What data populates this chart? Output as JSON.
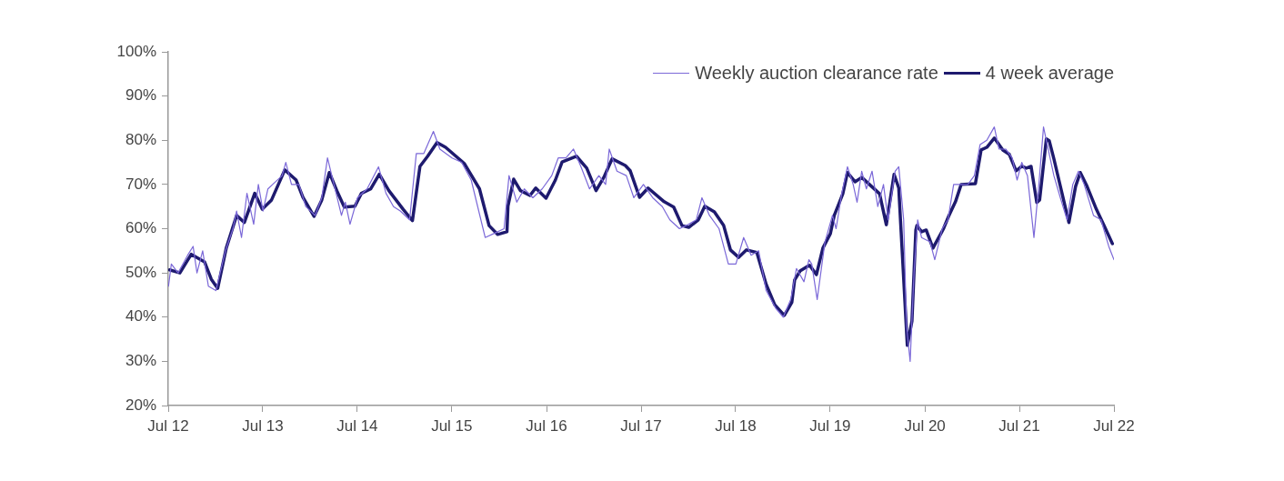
{
  "chart_data": {
    "type": "line",
    "xlim": [
      "2012-07-01",
      "2022-07-01"
    ],
    "xticks": [
      {
        "value": "2012-07-01",
        "label": "Jul 12"
      },
      {
        "value": "2013-07-01",
        "label": "Jul 13"
      },
      {
        "value": "2014-07-01",
        "label": "Jul 14"
      },
      {
        "value": "2015-07-01",
        "label": "Jul 15"
      },
      {
        "value": "2016-07-01",
        "label": "Jul 16"
      },
      {
        "value": "2017-07-01",
        "label": "Jul 17"
      },
      {
        "value": "2018-07-01",
        "label": "Jul 18"
      },
      {
        "value": "2019-07-01",
        "label": "Jul 19"
      },
      {
        "value": "2020-07-01",
        "label": "Jul 20"
      },
      {
        "value": "2021-07-01",
        "label": "Jul 21"
      },
      {
        "value": "2022-07-01",
        "label": "Jul 22"
      }
    ],
    "ylim": [
      20,
      100
    ],
    "yticks": [
      {
        "value": 20,
        "label": "20%"
      },
      {
        "value": 30,
        "label": "30%"
      },
      {
        "value": 40,
        "label": "40%"
      },
      {
        "value": 50,
        "label": "50%"
      },
      {
        "value": 60,
        "label": "60%"
      },
      {
        "value": 70,
        "label": "70%"
      },
      {
        "value": 80,
        "label": "80%"
      },
      {
        "value": 90,
        "label": "90%"
      },
      {
        "value": 100,
        "label": "100%"
      }
    ],
    "grid": false,
    "legend": "top right",
    "marker": "none",
    "line_style": "solid",
    "series": [
      {
        "name": "Weekly auction clearance rate",
        "color": "#7b68d8",
        "x": [
          "2012-07-02",
          "2012-07-13",
          "2012-08-08",
          "2012-09-14",
          "2012-10-05",
          "2012-10-20",
          "2012-11-11",
          "2012-12-03",
          "2013-01-01",
          "2013-02-07",
          "2013-03-08",
          "2013-03-22",
          "2013-04-10",
          "2013-05-01",
          "2013-05-27",
          "2013-06-14",
          "2013-07-02",
          "2013-07-21",
          "2013-08-08",
          "2013-09-14",
          "2013-09-28",
          "2013-10-20",
          "2013-11-18",
          "2013-12-14",
          "2014-01-19",
          "2014-02-14",
          "2014-03-08",
          "2014-04-02",
          "2014-05-01",
          "2014-05-16",
          "2014-06-03",
          "2014-07-02",
          "2014-08-08",
          "2014-09-21",
          "2014-10-20",
          "2014-11-18",
          "2014-12-14",
          "2015-01-19",
          "2015-02-14",
          "2015-03-15",
          "2015-04-21",
          "2015-05-16",
          "2015-07-02",
          "2015-08-08",
          "2015-09-14",
          "2015-11-07",
          "2015-12-14",
          "2016-01-19",
          "2016-02-07",
          "2016-03-08",
          "2016-04-06",
          "2016-05-09",
          "2016-06-14",
          "2016-07-21",
          "2016-08-15",
          "2016-09-14",
          "2016-10-13",
          "2016-11-11",
          "2016-12-14",
          "2017-01-19",
          "2017-02-14",
          "2017-02-28",
          "2017-03-30",
          "2017-05-05",
          "2017-06-03",
          "2017-07-10",
          "2017-08-15",
          "2017-09-21",
          "2017-10-20",
          "2017-11-26",
          "2018-01-01",
          "2018-01-30",
          "2018-02-21",
          "2018-03-22",
          "2018-04-28",
          "2018-06-03",
          "2018-07-02",
          "2018-08-01",
          "2018-08-30",
          "2018-09-28",
          "2018-10-27",
          "2018-12-03",
          "2019-01-01",
          "2019-01-30",
          "2019-02-21",
          "2019-03-22",
          "2019-04-10",
          "2019-04-21",
          "2019-05-12",
          "2019-06-11",
          "2019-07-10",
          "2019-07-24",
          "2019-08-15",
          "2019-09-06",
          "2019-09-28",
          "2019-10-13",
          "2019-10-31",
          "2019-11-18",
          "2019-12-10",
          "2020-01-01",
          "2020-01-23",
          "2020-02-10",
          "2020-03-08",
          "2020-03-22",
          "2020-04-10",
          "2020-04-21",
          "2020-05-05",
          "2020-05-20",
          "2020-06-03",
          "2020-06-18",
          "2020-07-21",
          "2020-08-08",
          "2020-09-06",
          "2020-09-28",
          "2020-10-20",
          "2020-11-11",
          "2020-12-14",
          "2021-01-08",
          "2021-01-30",
          "2021-02-25",
          "2021-03-26",
          "2021-04-13",
          "2021-05-09",
          "2021-06-03",
          "2021-06-22",
          "2021-07-10",
          "2021-08-01",
          "2021-08-26",
          "2021-09-14",
          "2021-10-02",
          "2021-10-20",
          "2021-11-11",
          "2021-12-06",
          "2022-01-01",
          "2022-01-23",
          "2022-02-14",
          "2022-03-08",
          "2022-04-13",
          "2022-05-12",
          "2022-06-11",
          "2022-07-01"
        ],
        "values": [
          47,
          52,
          50,
          54,
          56,
          50,
          55,
          47,
          46,
          55,
          60,
          64,
          58,
          68,
          61,
          70,
          64,
          69,
          70,
          72,
          75,
          70,
          70,
          65,
          63,
          67,
          76,
          70,
          63,
          66,
          61,
          67,
          69,
          74,
          68,
          65,
          64,
          62,
          77,
          77,
          82,
          78,
          76,
          75,
          71,
          58,
          59,
          60,
          72,
          66,
          69,
          67,
          69,
          72,
          76,
          76,
          78,
          74,
          69,
          72,
          70,
          78,
          73,
          72,
          67,
          70,
          67,
          65,
          62,
          60,
          61,
          62,
          67,
          63,
          60,
          52,
          52,
          58,
          54,
          55,
          46,
          42,
          40,
          44,
          51,
          48,
          53,
          52,
          44,
          57,
          63,
          60,
          68,
          74,
          70,
          66,
          73,
          69,
          73,
          65,
          70,
          62,
          73,
          74,
          62,
          38,
          30,
          50,
          62,
          58,
          57,
          53,
          60,
          62,
          70,
          70,
          70,
          72,
          79,
          80,
          83,
          78,
          78,
          76,
          71,
          75,
          72,
          58,
          70,
          83,
          78,
          72,
          67,
          62,
          70,
          73,
          70,
          63,
          62,
          56,
          53
        ]
      },
      {
        "name": "4 week average",
        "color": "#1e1a6e",
        "x": [
          "2012-07-06",
          "2012-08-15",
          "2012-09-28",
          "2012-11-18",
          "2012-12-14",
          "2013-01-08",
          "2013-02-10",
          "2013-03-22",
          "2013-04-21",
          "2013-05-31",
          "2013-06-29",
          "2013-08-04",
          "2013-09-24",
          "2013-11-07",
          "2013-12-03",
          "2014-01-15",
          "2014-02-14",
          "2014-03-15",
          "2014-04-13",
          "2014-05-12",
          "2014-06-22",
          "2014-07-17",
          "2014-08-22",
          "2014-09-24",
          "2014-10-31",
          "2014-12-25",
          "2015-01-30",
          "2015-02-28",
          "2015-03-30",
          "2015-05-05",
          "2015-06-07",
          "2015-08-19",
          "2015-10-16",
          "2015-11-22",
          "2015-12-25",
          "2016-01-30",
          "2016-02-03",
          "2016-02-25",
          "2016-03-22",
          "2016-04-28",
          "2016-05-20",
          "2016-06-29",
          "2016-08-04",
          "2016-08-30",
          "2016-10-24",
          "2016-12-03",
          "2017-01-08",
          "2017-02-07",
          "2017-03-11",
          "2017-05-01",
          "2017-05-20",
          "2017-06-25",
          "2017-07-28",
          "2017-09-28",
          "2017-11-04",
          "2017-12-06",
          "2018-01-01",
          "2018-02-07",
          "2018-03-04",
          "2018-04-10",
          "2018-05-16",
          "2018-06-11",
          "2018-07-13",
          "2018-08-12",
          "2018-09-21",
          "2018-10-27",
          "2018-11-29",
          "2019-01-05",
          "2019-02-03",
          "2019-02-14",
          "2019-03-08",
          "2019-04-06",
          "2019-04-13",
          "2019-05-09",
          "2019-06-03",
          "2019-07-02",
          "2019-07-17",
          "2019-08-19",
          "2019-09-06",
          "2019-10-05",
          "2019-10-31",
          "2019-11-26",
          "2020-01-08",
          "2020-02-03",
          "2020-03-04",
          "2020-03-22",
          "2020-04-24",
          "2020-05-12",
          "2020-05-27",
          "2020-05-31",
          "2020-06-18",
          "2020-07-06",
          "2020-08-01",
          "2020-09-10",
          "2020-10-02",
          "2020-10-27",
          "2020-11-18",
          "2021-01-12",
          "2021-02-03",
          "2021-02-25",
          "2021-03-26",
          "2021-04-28",
          "2021-05-23",
          "2021-06-18",
          "2021-07-10",
          "2021-07-28",
          "2021-08-15",
          "2021-09-06",
          "2021-09-17",
          "2021-10-13",
          "2021-10-24",
          "2021-11-11",
          "2021-12-10",
          "2022-01-08",
          "2022-02-03",
          "2022-02-21",
          "2022-03-19",
          "2022-04-24",
          "2022-05-27",
          "2022-06-25"
        ],
        "values": [
          50.7,
          50.0,
          54.2,
          52.5,
          48.6,
          46.5,
          55.6,
          63.0,
          61.4,
          68.0,
          64.4,
          66.5,
          73.3,
          71.0,
          67.1,
          62.8,
          66.5,
          72.7,
          68.6,
          64.9,
          65.1,
          68.0,
          69.0,
          72.3,
          68.6,
          64.4,
          61.8,
          74.1,
          76.4,
          79.5,
          78.4,
          74.7,
          69.0,
          60.7,
          58.7,
          59.3,
          65.1,
          71.2,
          68.6,
          67.5,
          69.2,
          66.9,
          71.0,
          75.1,
          76.4,
          73.7,
          68.6,
          71.6,
          75.8,
          74.3,
          73.1,
          67.1,
          69.2,
          66.1,
          64.9,
          60.7,
          60.3,
          62.0,
          65.1,
          63.8,
          60.7,
          55.2,
          53.5,
          55.2,
          54.6,
          47.4,
          42.8,
          40.4,
          43.3,
          48.4,
          50.5,
          51.5,
          51.7,
          49.6,
          55.6,
          58.9,
          63.0,
          67.9,
          72.7,
          70.6,
          71.6,
          70.2,
          67.9,
          60.9,
          72.3,
          69.2,
          33.6,
          39.1,
          59.7,
          60.7,
          59.3,
          59.7,
          55.6,
          59.9,
          63.0,
          66.1,
          70.0,
          70.2,
          77.8,
          78.4,
          80.5,
          77.8,
          76.8,
          73.1,
          74.1,
          73.7,
          74.1,
          65.9,
          66.5,
          80.3,
          79.9,
          75.8,
          68.6,
          61.4,
          69.6,
          72.7,
          69.6,
          64.4,
          60.3,
          56.6
        ]
      }
    ]
  }
}
